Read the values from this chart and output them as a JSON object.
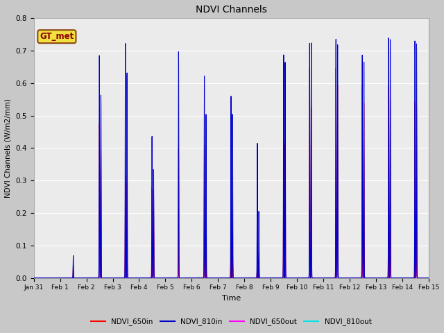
{
  "title": "NDVI Channels",
  "xlabel": "Time",
  "ylabel": "NDVI Channels (W/m2/mm)",
  "ylim": [
    0.0,
    0.8
  ],
  "plot_bg_color": "#ebebeb",
  "fig_bg_color": "#c8c8c8",
  "legend_label": "GT_met",
  "legend_label_color": "#8B0000",
  "legend_label_bg": "#f0e040",
  "series": {
    "NDVI_650in": {
      "color": "#ff0000",
      "lw": 0.8
    },
    "NDVI_810in": {
      "color": "#0000cc",
      "lw": 0.8
    },
    "NDVI_650out": {
      "color": "#ff00ff",
      "lw": 0.8
    },
    "NDVI_810out": {
      "color": "#00e5e5",
      "lw": 0.8
    }
  },
  "spike_configs": [
    [
      1,
      12.0,
      0.069,
      0.038,
      0.006,
      0.006
    ],
    [
      2,
      11.8,
      0.69,
      0.48,
      0.063,
      0.06
    ],
    [
      2,
      13.2,
      0.565,
      0.395,
      0.058,
      0.055
    ],
    [
      3,
      11.5,
      0.735,
      0.32,
      0.1,
      0.095
    ],
    [
      3,
      13.0,
      0.635,
      0.295,
      0.092,
      0.088
    ],
    [
      4,
      11.8,
      0.445,
      0.285,
      0.042,
      0.038
    ],
    [
      4,
      13.2,
      0.34,
      0.275,
      0.038,
      0.035
    ],
    [
      5,
      12.0,
      0.7,
      0.4,
      0.08,
      0.075
    ],
    [
      6,
      11.5,
      0.622,
      0.41,
      0.08,
      0.075
    ],
    [
      6,
      13.0,
      0.505,
      0.375,
      0.075,
      0.07
    ],
    [
      7,
      11.8,
      0.56,
      0.178,
      0.078,
      0.073
    ],
    [
      7,
      13.2,
      0.505,
      0.11,
      0.073,
      0.068
    ],
    [
      8,
      11.8,
      0.415,
      0.06,
      0.04,
      0.035
    ],
    [
      8,
      13.2,
      0.205,
      0.055,
      0.036,
      0.031
    ],
    [
      9,
      11.8,
      0.69,
      0.425,
      0.1,
      0.095
    ],
    [
      9,
      13.2,
      0.665,
      0.415,
      0.097,
      0.092
    ],
    [
      10,
      11.5,
      0.74,
      0.66,
      0.098,
      0.093
    ],
    [
      10,
      13.0,
      0.73,
      0.53,
      0.095,
      0.09
    ],
    [
      11,
      11.5,
      0.745,
      0.655,
      0.102,
      0.097
    ],
    [
      11,
      13.0,
      0.72,
      0.595,
      0.1,
      0.095
    ],
    [
      12,
      11.5,
      0.69,
      0.6,
      0.1,
      0.095
    ],
    [
      12,
      13.0,
      0.665,
      0.54,
      0.097,
      0.092
    ],
    [
      13,
      11.5,
      0.74,
      0.59,
      0.098,
      0.093
    ],
    [
      13,
      13.0,
      0.735,
      0.55,
      0.095,
      0.09
    ],
    [
      14,
      11.5,
      0.73,
      0.545,
      0.085,
      0.08
    ],
    [
      14,
      13.0,
      0.725,
      0.54,
      0.083,
      0.078
    ]
  ],
  "spike_sigma": 0.18,
  "x_tick_labels": [
    "Jan 31",
    "Feb 1",
    "Feb 2",
    "Feb 3",
    "Feb 4",
    "Feb 5",
    "Feb 6",
    "Feb 7",
    "Feb 8",
    "Feb 9",
    "Feb 10",
    "Feb 11",
    "Feb 12",
    "Feb 13",
    "Feb 14",
    "Feb 15"
  ],
  "x_tick_days": [
    0,
    1,
    2,
    3,
    4,
    5,
    6,
    7,
    8,
    9,
    10,
    11,
    12,
    13,
    14,
    15
  ],
  "yticks": [
    0.0,
    0.1,
    0.2,
    0.3,
    0.4,
    0.5,
    0.6,
    0.7,
    0.8
  ]
}
